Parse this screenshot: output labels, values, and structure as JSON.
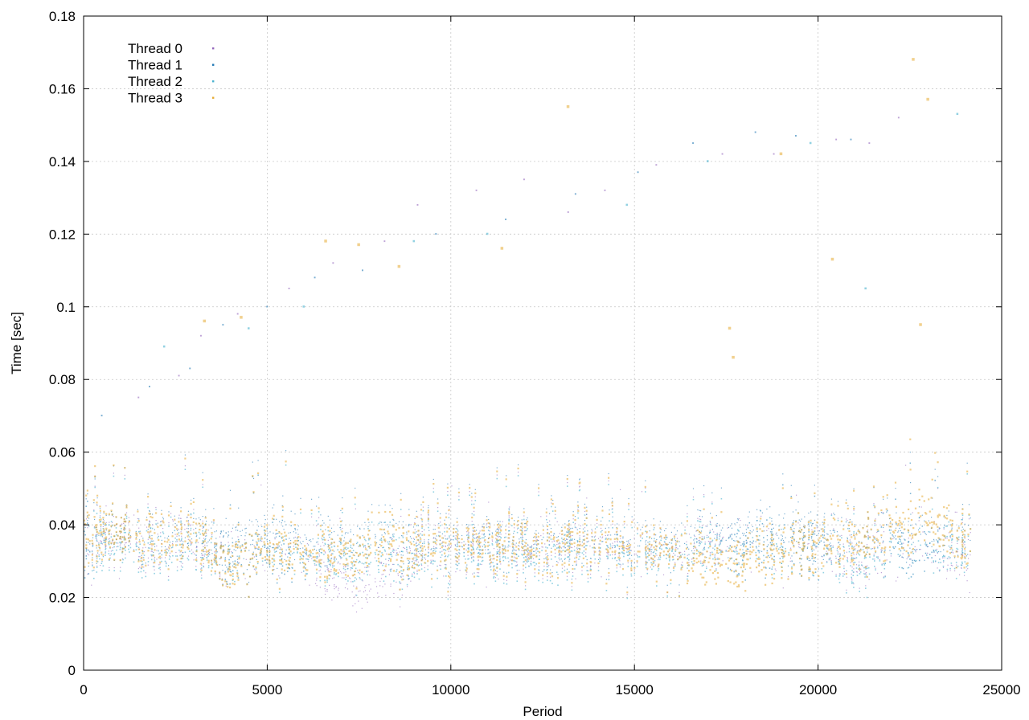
{
  "chart_data": {
    "type": "scatter",
    "title": "",
    "xlabel": "Period",
    "ylabel": "Time [sec]",
    "xlim": [
      0,
      25000
    ],
    "ylim": [
      0,
      0.18
    ],
    "xticks": [
      0,
      5000,
      10000,
      15000,
      20000,
      25000
    ],
    "yticks": [
      0,
      0.02,
      0.04,
      0.06,
      0.08,
      0.1,
      0.12,
      0.14,
      0.16,
      0.18
    ],
    "xtick_labels": [
      "0",
      "5000",
      "10000",
      "15000",
      "20000",
      "25000"
    ],
    "ytick_labels": [
      "0",
      "0.02",
      "0.04",
      "0.06",
      "0.08",
      "0.1",
      "0.12",
      "0.14",
      "0.16",
      "0.18"
    ],
    "grid": true,
    "legend_position": "top-left",
    "period_range": [
      0,
      24150
    ],
    "series": [
      {
        "name": "Thread 0",
        "color": "#9467bd",
        "marker_size": 1.2,
        "profile": [
          [
            0,
            0.034
          ],
          [
            1000,
            0.036
          ],
          [
            2000,
            0.034
          ],
          [
            3000,
            0.035
          ],
          [
            4000,
            0.031
          ],
          [
            5000,
            0.032
          ],
          [
            6000,
            0.032
          ],
          [
            7000,
            0.027
          ],
          [
            7500,
            0.023
          ],
          [
            8000,
            0.024
          ],
          [
            9000,
            0.033
          ],
          [
            10000,
            0.034
          ],
          [
            12000,
            0.033
          ],
          [
            14000,
            0.034
          ],
          [
            16000,
            0.033
          ],
          [
            18000,
            0.034
          ],
          [
            20000,
            0.033
          ],
          [
            21000,
            0.03
          ],
          [
            22000,
            0.033
          ],
          [
            23000,
            0.033
          ],
          [
            24150,
            0.032
          ]
        ],
        "outliers": [
          [
            1500,
            0.075
          ],
          [
            2600,
            0.081
          ],
          [
            3200,
            0.092
          ],
          [
            4200,
            0.098
          ],
          [
            5600,
            0.105
          ],
          [
            6800,
            0.112
          ],
          [
            8200,
            0.118
          ],
          [
            9100,
            0.128
          ],
          [
            10700,
            0.132
          ],
          [
            12000,
            0.135
          ],
          [
            13200,
            0.126
          ],
          [
            14200,
            0.132
          ],
          [
            15600,
            0.139
          ],
          [
            17400,
            0.142
          ],
          [
            18800,
            0.142
          ],
          [
            20500,
            0.146
          ],
          [
            21400,
            0.145
          ],
          [
            22200,
            0.152
          ]
        ]
      },
      {
        "name": "Thread 1",
        "color": "#1f77b4",
        "marker_size": 1.2,
        "profile": [
          [
            0,
            0.036
          ],
          [
            1000,
            0.038
          ],
          [
            2000,
            0.037
          ],
          [
            3000,
            0.038
          ],
          [
            4000,
            0.035
          ],
          [
            5000,
            0.036
          ],
          [
            6000,
            0.036
          ],
          [
            7000,
            0.035
          ],
          [
            8000,
            0.036
          ],
          [
            10000,
            0.036
          ],
          [
            12000,
            0.035
          ],
          [
            14000,
            0.036
          ],
          [
            16000,
            0.035
          ],
          [
            18000,
            0.037
          ],
          [
            20000,
            0.036
          ],
          [
            22000,
            0.036
          ],
          [
            24150,
            0.036
          ]
        ],
        "outliers": [
          [
            500,
            0.07
          ],
          [
            1800,
            0.078
          ],
          [
            2900,
            0.083
          ],
          [
            3800,
            0.095
          ],
          [
            5000,
            0.1
          ],
          [
            6300,
            0.108
          ],
          [
            7600,
            0.11
          ],
          [
            9600,
            0.12
          ],
          [
            11500,
            0.124
          ],
          [
            13400,
            0.131
          ],
          [
            15100,
            0.137
          ],
          [
            16600,
            0.145
          ],
          [
            18300,
            0.148
          ],
          [
            19400,
            0.147
          ],
          [
            20900,
            0.146
          ]
        ]
      },
      {
        "name": "Thread 2",
        "color": "#4ab3cf",
        "marker_size": 1.6,
        "profile": [
          [
            0,
            0.034
          ],
          [
            1000,
            0.035
          ],
          [
            2000,
            0.033
          ],
          [
            3000,
            0.034
          ],
          [
            4000,
            0.031
          ],
          [
            5000,
            0.032
          ],
          [
            6000,
            0.032
          ],
          [
            7000,
            0.031
          ],
          [
            8000,
            0.031
          ],
          [
            10000,
            0.033
          ],
          [
            12000,
            0.032
          ],
          [
            14000,
            0.033
          ],
          [
            16000,
            0.032
          ],
          [
            18000,
            0.034
          ],
          [
            20000,
            0.033
          ],
          [
            21000,
            0.029
          ],
          [
            22000,
            0.033
          ],
          [
            24150,
            0.033
          ]
        ],
        "outliers": [
          [
            2200,
            0.089
          ],
          [
            4500,
            0.094
          ],
          [
            6000,
            0.1
          ],
          [
            9000,
            0.118
          ],
          [
            11000,
            0.12
          ],
          [
            14800,
            0.128
          ],
          [
            17000,
            0.14
          ],
          [
            19800,
            0.145
          ],
          [
            21300,
            0.105
          ],
          [
            23800,
            0.153
          ]
        ]
      },
      {
        "name": "Thread 3",
        "color": "#e6ab33",
        "marker_size": 2.2,
        "profile": [
          [
            0,
            0.037
          ],
          [
            1000,
            0.038
          ],
          [
            2000,
            0.036
          ],
          [
            3000,
            0.037
          ],
          [
            4000,
            0.03
          ],
          [
            5000,
            0.033
          ],
          [
            6000,
            0.033
          ],
          [
            7000,
            0.032
          ],
          [
            8000,
            0.034
          ],
          [
            10000,
            0.035
          ],
          [
            12000,
            0.034
          ],
          [
            14000,
            0.035
          ],
          [
            16000,
            0.033
          ],
          [
            17000,
            0.029
          ],
          [
            18000,
            0.031
          ],
          [
            20000,
            0.034
          ],
          [
            22000,
            0.037
          ],
          [
            23000,
            0.042
          ],
          [
            24150,
            0.033
          ]
        ],
        "outliers": [
          [
            3300,
            0.096
          ],
          [
            4300,
            0.097
          ],
          [
            6600,
            0.118
          ],
          [
            7500,
            0.117
          ],
          [
            8600,
            0.111
          ],
          [
            11400,
            0.116
          ],
          [
            13200,
            0.155
          ],
          [
            17600,
            0.094
          ],
          [
            17700,
            0.086
          ],
          [
            19000,
            0.142
          ],
          [
            20400,
            0.113
          ],
          [
            22600,
            0.168
          ],
          [
            23000,
            0.157
          ],
          [
            22800,
            0.095
          ]
        ]
      }
    ]
  }
}
